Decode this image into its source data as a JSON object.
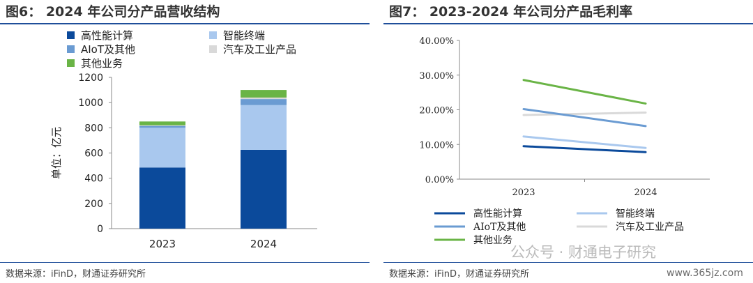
{
  "left_panel": {
    "title": "图6： 2024 年公司分产品营收结构",
    "source": "数据来源：iFinD，财通证券研究所"
  },
  "right_panel": {
    "title": "图7： 2023-2024 年公司分产品毛利率",
    "source": "数据来源：iFinD，财通证券研究所"
  },
  "watermark": "公众号 · 财通电子研究",
  "watermark_site": "www.365jz.com",
  "colors": {
    "hpc": "#0b4a9b",
    "smart_terminal": "#a9c8ee",
    "aiot": "#6a9bd2",
    "auto_industrial": "#d9d9d9",
    "other": "#6ab446",
    "frame": "#1f4e9a"
  },
  "chart_data": [
    {
      "type": "bar",
      "stacked": true,
      "categories": [
        "2023",
        "2024"
      ],
      "ylabel": "单位：亿元",
      "ylim": [
        0,
        1200
      ],
      "yticks": [
        "0",
        "200",
        "400",
        "600",
        "800",
        "1000",
        "1200"
      ],
      "grid": false,
      "legend_position": "top",
      "series": [
        {
          "name": "高性能计算",
          "values": [
            485,
            625
          ]
        },
        {
          "name": "智能终端",
          "values": [
            315,
            355
          ]
        },
        {
          "name": "AIoT及其他",
          "values": [
            15,
            48
          ]
        },
        {
          "name": "汽车及工业产品",
          "values": [
            5,
            12
          ]
        },
        {
          "name": "其他业务",
          "values": [
            30,
            60
          ]
        }
      ]
    },
    {
      "type": "line",
      "categories": [
        "2023",
        "2024"
      ],
      "ylim": [
        0,
        40
      ],
      "yticks": [
        "0.00%",
        "10.00%",
        "20.00%",
        "30.00%",
        "40.00%"
      ],
      "grid": false,
      "legend_position": "bottom",
      "series": [
        {
          "name": "高性能计算",
          "values": [
            9.5,
            7.8
          ]
        },
        {
          "name": "智能终端",
          "values": [
            12.3,
            9.0
          ]
        },
        {
          "name": "AIoT及其他",
          "values": [
            20.2,
            15.3
          ]
        },
        {
          "name": "汽车及工业产品",
          "values": [
            18.5,
            19.2
          ]
        },
        {
          "name": "其他业务",
          "values": [
            28.6,
            21.8
          ]
        }
      ]
    }
  ]
}
